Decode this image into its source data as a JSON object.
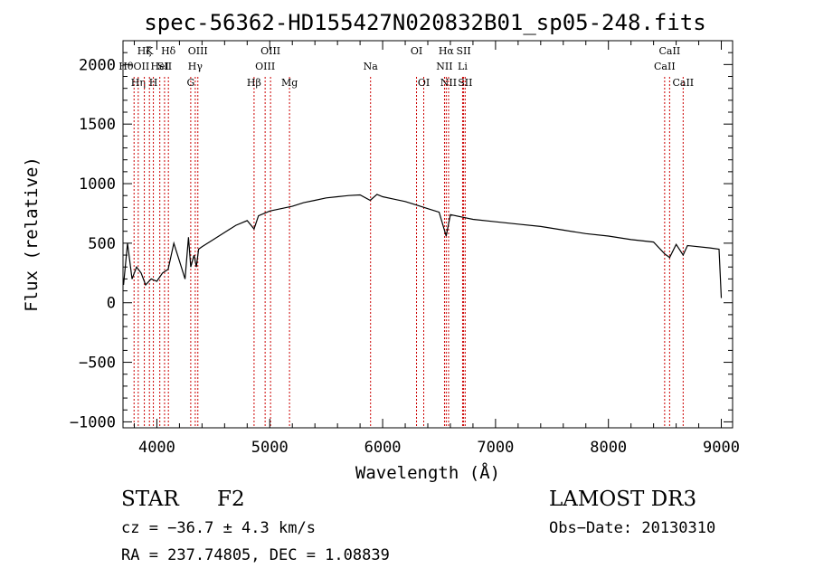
{
  "chart_data": {
    "type": "line",
    "title": "spec-56362-HD155427N020832B01_sp05-248.fits",
    "xlabel": "Wavelength (Å)",
    "ylabel": "Flux (relative)",
    "xlim": [
      3700,
      9100
    ],
    "ylim": [
      -1050,
      2200
    ],
    "xticks": [
      4000,
      5000,
      6000,
      7000,
      8000,
      9000
    ],
    "yticks": [
      -1000,
      -500,
      0,
      500,
      1000,
      1500,
      2000
    ],
    "xtick_labels": [
      "4000",
      "5000",
      "6000",
      "7000",
      "8000",
      "9000"
    ],
    "ytick_labels": [
      "−1000",
      "−500",
      "0",
      "500",
      "1000",
      "1500",
      "2000"
    ],
    "grid": false,
    "line_color": "#000000",
    "marker_color": "#cc0000",
    "series": [
      {
        "name": "flux",
        "points": [
          [
            3705,
            150
          ],
          [
            3740,
            500
          ],
          [
            3780,
            200
          ],
          [
            3820,
            300
          ],
          [
            3860,
            250
          ],
          [
            3900,
            150
          ],
          [
            3950,
            200
          ],
          [
            4000,
            180
          ],
          [
            4050,
            250
          ],
          [
            4100,
            280
          ],
          [
            4150,
            500
          ],
          [
            4200,
            350
          ],
          [
            4250,
            200
          ],
          [
            4280,
            550
          ],
          [
            4300,
            300
          ],
          [
            4330,
            400
          ],
          [
            4350,
            300
          ],
          [
            4370,
            450
          ],
          [
            4400,
            470
          ],
          [
            4500,
            530
          ],
          [
            4600,
            590
          ],
          [
            4700,
            650
          ],
          [
            4800,
            690
          ],
          [
            4861,
            620
          ],
          [
            4900,
            730
          ],
          [
            5000,
            770
          ],
          [
            5100,
            790
          ],
          [
            5200,
            810
          ],
          [
            5300,
            840
          ],
          [
            5400,
            860
          ],
          [
            5500,
            880
          ],
          [
            5600,
            890
          ],
          [
            5700,
            900
          ],
          [
            5800,
            905
          ],
          [
            5890,
            860
          ],
          [
            5950,
            910
          ],
          [
            6000,
            890
          ],
          [
            6100,
            870
          ],
          [
            6200,
            850
          ],
          [
            6300,
            820
          ],
          [
            6400,
            790
          ],
          [
            6500,
            760
          ],
          [
            6563,
            560
          ],
          [
            6600,
            740
          ],
          [
            6700,
            720
          ],
          [
            6800,
            700
          ],
          [
            7000,
            680
          ],
          [
            7200,
            660
          ],
          [
            7400,
            640
          ],
          [
            7600,
            610
          ],
          [
            7800,
            580
          ],
          [
            8000,
            560
          ],
          [
            8200,
            530
          ],
          [
            8400,
            510
          ],
          [
            8498,
            410
          ],
          [
            8542,
            380
          ],
          [
            8600,
            490
          ],
          [
            8662,
            400
          ],
          [
            8700,
            480
          ],
          [
            8900,
            460
          ],
          [
            8980,
            450
          ],
          [
            9000,
            40
          ]
        ]
      }
    ],
    "line_markers": [
      {
        "wave": 3798,
        "label": "HθOII",
        "row": 1
      },
      {
        "wave": 3835,
        "label": "Hη",
        "row": 2
      },
      {
        "wave": 3889,
        "label": "Hζ",
        "row": 0
      },
      {
        "wave": 3934,
        "label": "K",
        "row": 0
      },
      {
        "wave": 3969,
        "label": "H",
        "row": 2
      },
      {
        "wave": 4026,
        "label": "HeI",
        "row": 1
      },
      {
        "wave": 4102,
        "label": "Hδ",
        "row": 0
      },
      {
        "wave": 4068,
        "label": "SII",
        "row": 1
      },
      {
        "wave": 4300,
        "label": "G",
        "row": 2
      },
      {
        "wave": 4340,
        "label": "Hγ",
        "row": 1
      },
      {
        "wave": 4363,
        "label": "OIII",
        "row": 0
      },
      {
        "wave": 4861,
        "label": "Hβ",
        "row": 2
      },
      {
        "wave": 4959,
        "label": "OIII",
        "row": 1
      },
      {
        "wave": 5007,
        "label": "OIII",
        "row": 0
      },
      {
        "wave": 5175,
        "label": "Mg",
        "row": 2
      },
      {
        "wave": 5893,
        "label": "Na",
        "row": 1
      },
      {
        "wave": 6300,
        "label": "OI",
        "row": 0
      },
      {
        "wave": 6364,
        "label": "OI",
        "row": 2
      },
      {
        "wave": 6548,
        "label": "NII",
        "row": 1
      },
      {
        "wave": 6563,
        "label": "Hα",
        "row": 0
      },
      {
        "wave": 6584,
        "label": "NII",
        "row": 2
      },
      {
        "wave": 6708,
        "label": "Li",
        "row": 1
      },
      {
        "wave": 6717,
        "label": "SII",
        "row": 0
      },
      {
        "wave": 6731,
        "label": "SII",
        "row": 2
      },
      {
        "wave": 8498,
        "label": "CaII",
        "row": 1
      },
      {
        "wave": 8542,
        "label": "CaII",
        "row": 0
      },
      {
        "wave": 8662,
        "label": "CaII",
        "row": 2
      }
    ]
  },
  "info": {
    "object_class": "STAR",
    "subclass": "F2",
    "survey": "LAMOST DR3",
    "cz": "cz = −36.7 ± 4.3 km/s",
    "obs_date": "Obs−Date: 20130310",
    "radec": "RA = 237.74805, DEC =    1.08839"
  }
}
